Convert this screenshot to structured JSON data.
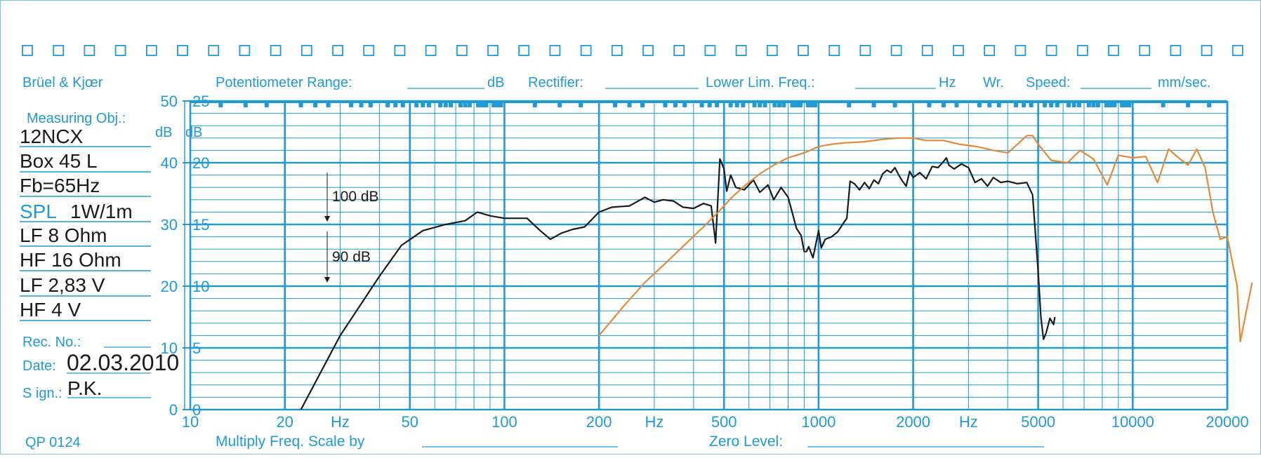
{
  "colors": {
    "paper_blue": "#1f9ad6",
    "response_black": "#1a1a1a",
    "response_orange": "#e08a3a",
    "frame": "#7ec3e6"
  },
  "header": {
    "brand": "Brüel & Kjœr",
    "potentiometer_label": "Potentiometer Range:",
    "potentiometer_unit": "dB",
    "rectifier_label": "Rectifier:",
    "lower_lim_label": "Lower Lim. Freq.:",
    "lower_lim_unit": "Hz",
    "wr_label": "Wr.",
    "speed_label": "Speed:",
    "speed_unit": "mm/sec."
  },
  "left_panel": {
    "measuring_obj_label": "Measuring Obj.:",
    "lines": [
      "12NCX",
      "Box 45 L",
      "Fb=65Hz",
      "1W/1m",
      "LF 8 Ohm",
      "HF 16 Ohm",
      "LF 2,83 V",
      "HF 4 V"
    ],
    "spl_label": "SPL",
    "rec_no_label": "Rec.  No.:",
    "date_label": "Date:",
    "date_value": "02.03.2010",
    "sign_label": "S ign.:",
    "sign_value": "P.K.",
    "form_code": "QP  0124"
  },
  "footer": {
    "multiply_label": "Multiply Freq. Scale by",
    "zero_level_label": "Zero Level:"
  },
  "annotations": {
    "ref_100": "100 dB",
    "ref_90": "90 dB"
  },
  "chart_data": {
    "type": "line",
    "x_scale": "log",
    "xlim": [
      10,
      20000
    ],
    "x_ticks": [
      10,
      20,
      50,
      100,
      200,
      500,
      1000,
      2000,
      5000,
      10000,
      20000
    ],
    "x_tick_labels": [
      "10",
      "20",
      "Hz",
      "50",
      "100",
      "200",
      "Hz",
      "500",
      "1000",
      "2000",
      "Hz",
      "5000",
      "10000",
      "20000"
    ],
    "y_scales": [
      {
        "unit": "dB",
        "range": [
          0,
          50
        ],
        "ticks": [
          0,
          10,
          20,
          30,
          40,
          50
        ]
      },
      {
        "unit": "dB",
        "range": [
          0,
          25
        ],
        "ticks": [
          0,
          5,
          10,
          15,
          20,
          25
        ]
      }
    ],
    "grid": true,
    "series": [
      {
        "color": "#1a1a1a",
        "points": [
          [
            22.5,
            0
          ],
          [
            30,
            6
          ],
          [
            40,
            10.8
          ],
          [
            47,
            13.3
          ],
          [
            55,
            14.5
          ],
          [
            65,
            15
          ],
          [
            75,
            15.3
          ],
          [
            82,
            16
          ],
          [
            90,
            15.7
          ],
          [
            100,
            15.5
          ],
          [
            118,
            15.5
          ],
          [
            130,
            14.5
          ],
          [
            140,
            13.8
          ],
          [
            152,
            14.3
          ],
          [
            165,
            14.6
          ],
          [
            180,
            14.8
          ],
          [
            200,
            16
          ],
          [
            220,
            16.4
          ],
          [
            250,
            16.5
          ],
          [
            280,
            17.2
          ],
          [
            300,
            16.8
          ],
          [
            320,
            17
          ],
          [
            345,
            16.9
          ],
          [
            370,
            16.4
          ],
          [
            400,
            16.3
          ],
          [
            430,
            16.7
          ],
          [
            455,
            16.5
          ],
          [
            470,
            13.5
          ],
          [
            485,
            20.3
          ],
          [
            500,
            19.5
          ],
          [
            510,
            17.7
          ],
          [
            525,
            19
          ],
          [
            545,
            18
          ],
          [
            580,
            17.8
          ],
          [
            620,
            18.6
          ],
          [
            650,
            17.6
          ],
          [
            690,
            18.2
          ],
          [
            720,
            17
          ],
          [
            760,
            18
          ],
          [
            800,
            17.2
          ],
          [
            850,
            14.7
          ],
          [
            880,
            14.1
          ],
          [
            900,
            12.8
          ],
          [
            915,
            12.8
          ],
          [
            930,
            13.2
          ],
          [
            960,
            12.3
          ],
          [
            980,
            13.4
          ],
          [
            1000,
            14.5
          ],
          [
            1020,
            13.1
          ],
          [
            1050,
            13.8
          ],
          [
            1100,
            14
          ],
          [
            1150,
            14.4
          ],
          [
            1200,
            15.1
          ],
          [
            1230,
            15.5
          ],
          [
            1260,
            18.5
          ],
          [
            1300,
            18.3
          ],
          [
            1350,
            17.8
          ],
          [
            1400,
            18.4
          ],
          [
            1450,
            17.9
          ],
          [
            1500,
            18.6
          ],
          [
            1550,
            18.3
          ],
          [
            1600,
            19.1
          ],
          [
            1650,
            19.4
          ],
          [
            1700,
            19.2
          ],
          [
            1750,
            19.6
          ],
          [
            1800,
            19
          ],
          [
            1850,
            18.5
          ],
          [
            1900,
            18.1
          ],
          [
            1950,
            19.3
          ],
          [
            2000,
            18.8
          ],
          [
            2100,
            19.2
          ],
          [
            2200,
            18.7
          ],
          [
            2300,
            19.7
          ],
          [
            2400,
            19.6
          ],
          [
            2500,
            20.1
          ],
          [
            2550,
            20.4
          ],
          [
            2600,
            19.8
          ],
          [
            2700,
            19.5
          ],
          [
            2850,
            19.9
          ],
          [
            3000,
            19.6
          ],
          [
            3150,
            18.4
          ],
          [
            3300,
            18.7
          ],
          [
            3450,
            18.1
          ],
          [
            3600,
            18.8
          ],
          [
            3800,
            18.4
          ],
          [
            4000,
            18.5
          ],
          [
            4300,
            18.3
          ],
          [
            4600,
            18.4
          ],
          [
            4800,
            17.4
          ],
          [
            5000,
            11.2
          ],
          [
            5100,
            7.5
          ],
          [
            5200,
            5.7
          ],
          [
            5300,
            6.2
          ],
          [
            5450,
            7.4
          ],
          [
            5600,
            6.9
          ],
          [
            5650,
            7.5
          ]
        ]
      },
      {
        "color": "#e08a3a",
        "points": [
          [
            200,
            6
          ],
          [
            240,
            8.4
          ],
          [
            280,
            10.3
          ],
          [
            330,
            12
          ],
          [
            380,
            13.5
          ],
          [
            430,
            14.8
          ],
          [
            480,
            16
          ],
          [
            530,
            17.2
          ],
          [
            580,
            18.1
          ],
          [
            650,
            19.1
          ],
          [
            720,
            19.8
          ],
          [
            800,
            20.4
          ],
          [
            900,
            20.8
          ],
          [
            1000,
            21.3
          ],
          [
            1100,
            21.5
          ],
          [
            1200,
            21.6
          ],
          [
            1400,
            21.7
          ],
          [
            1600,
            21.9
          ],
          [
            1800,
            22
          ],
          [
            2000,
            22
          ],
          [
            2200,
            21.8
          ],
          [
            2500,
            21.8
          ],
          [
            2800,
            21.5
          ],
          [
            3200,
            21.3
          ],
          [
            3600,
            21
          ],
          [
            4000,
            20.8
          ],
          [
            4300,
            21.5
          ],
          [
            4600,
            22.2
          ],
          [
            4800,
            22.2
          ],
          [
            5000,
            21.5
          ],
          [
            5500,
            20.2
          ],
          [
            6200,
            20
          ],
          [
            6800,
            21
          ],
          [
            7500,
            20.3
          ],
          [
            8300,
            18.2
          ],
          [
            9000,
            20.6
          ],
          [
            10000,
            20.4
          ],
          [
            11000,
            20.5
          ],
          [
            12000,
            18.4
          ],
          [
            13000,
            21.1
          ],
          [
            14000,
            20.4
          ],
          [
            15000,
            19.8
          ],
          [
            16000,
            21.1
          ],
          [
            17000,
            19.6
          ],
          [
            18000,
            16
          ],
          [
            19000,
            13.8
          ],
          [
            20000,
            14
          ],
          [
            21500,
            10
          ],
          [
            22000,
            5.5
          ],
          [
            23000,
            8
          ],
          [
            24000,
            10.3
          ]
        ]
      }
    ]
  }
}
